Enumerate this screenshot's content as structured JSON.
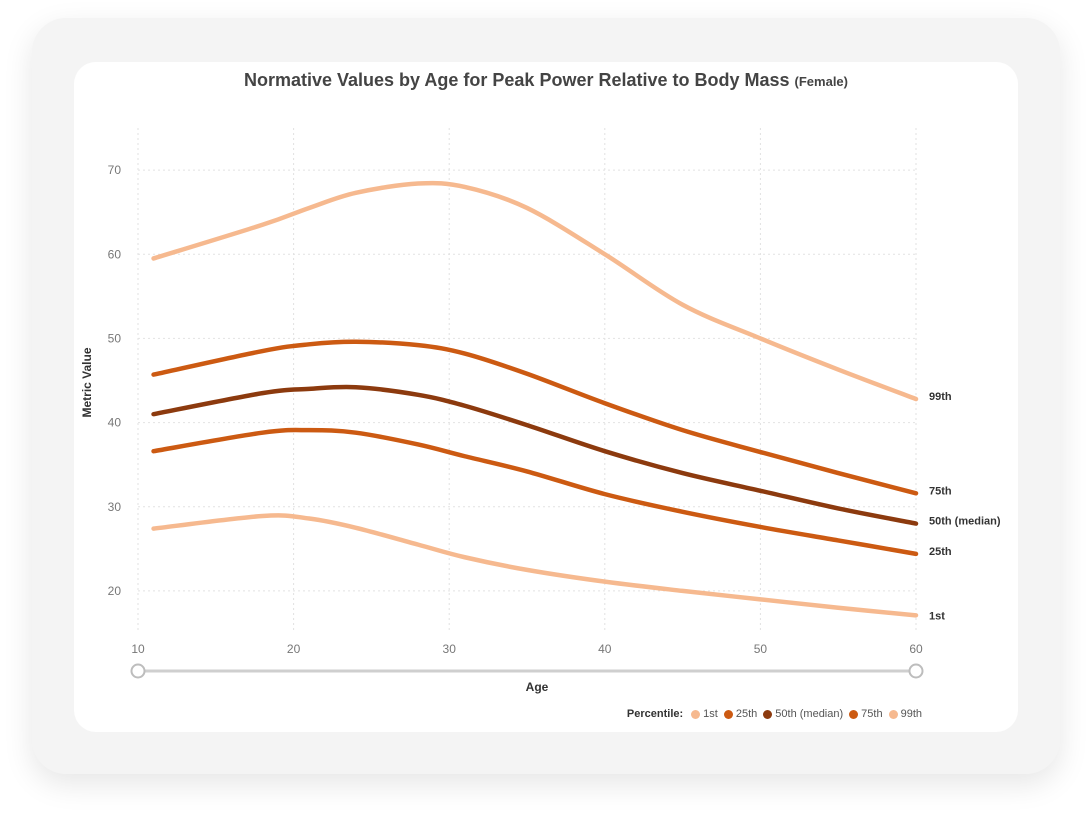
{
  "chart_data": {
    "type": "line",
    "title": "Normative Values by Age for Peak Power Relative to Body Mass",
    "subtitle": "(Female)",
    "xlabel": "Age",
    "ylabel": "Metric Value",
    "xlim": [
      10,
      60
    ],
    "ylim": [
      15,
      75
    ],
    "x_ticks": [
      10,
      20,
      30,
      40,
      50,
      60
    ],
    "y_ticks": [
      20,
      30,
      40,
      50,
      60,
      70
    ],
    "grid": true,
    "legend_title": "Percentile:",
    "legend_position": "bottom-right",
    "x": [
      11,
      18,
      21,
      24,
      28,
      31,
      35,
      40,
      45,
      50,
      55,
      60
    ],
    "series": [
      {
        "name": "1st",
        "end_label": "1st",
        "color": "#f6b98f",
        "values": [
          27.4,
          28.9,
          28.6,
          27.5,
          25.5,
          24.0,
          22.5,
          21.1,
          20.0,
          19.0,
          18.0,
          17.1
        ]
      },
      {
        "name": "25th",
        "end_label": "25th",
        "color": "#cc5a12",
        "values": [
          36.6,
          38.8,
          39.1,
          38.8,
          37.4,
          36.0,
          34.2,
          31.5,
          29.4,
          27.6,
          26.0,
          24.4
        ]
      },
      {
        "name": "50th (median)",
        "end_label": "50th (median)",
        "color": "#8c3a0e",
        "values": [
          41.0,
          43.5,
          44.0,
          44.2,
          43.3,
          42.0,
          39.7,
          36.6,
          34.0,
          31.9,
          29.8,
          28.0
        ]
      },
      {
        "name": "75th",
        "end_label": "75th",
        "color": "#cc5a12",
        "values": [
          45.7,
          48.5,
          49.3,
          49.6,
          49.2,
          48.2,
          45.8,
          42.3,
          39.1,
          36.5,
          34.0,
          31.6
        ]
      },
      {
        "name": "99th",
        "end_label": "99th",
        "color": "#f6b98f",
        "values": [
          59.5,
          63.5,
          65.5,
          67.3,
          68.4,
          68.0,
          65.5,
          60.0,
          54.0,
          50.0,
          46.3,
          42.8
        ]
      }
    ]
  }
}
